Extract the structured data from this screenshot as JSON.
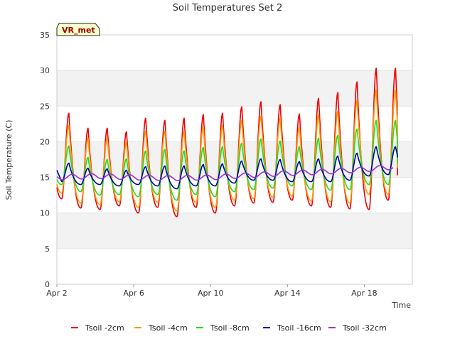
{
  "chart_data": {
    "type": "line",
    "title": "Soil Temperatures Set 2",
    "xlabel": "Time",
    "ylabel": "Soil Temperature (C)",
    "site_label": "VR_met",
    "xlim": [
      "2024-04-02T00:00",
      "2024-04-20T12:00"
    ],
    "ylim": [
      0,
      35
    ],
    "y_ticks": [
      0,
      5,
      10,
      15,
      20,
      25,
      30,
      35
    ],
    "x_ticks": [
      {
        "date": "2024-04-02",
        "label": "Apr 2"
      },
      {
        "date": "2024-04-06",
        "label": "Apr 6"
      },
      {
        "date": "2024-04-10",
        "label": "Apr 10"
      },
      {
        "date": "2024-04-14",
        "label": "Apr 14"
      },
      {
        "date": "2024-04-18",
        "label": "Apr 18"
      }
    ],
    "grid": "horizontal bands",
    "legend_position": "bottom",
    "series": [
      {
        "name": "Tsoil -2cm",
        "color": "#ee0000",
        "line_kind": "daily",
        "days": [
          "2024-04-02",
          "2024-04-03",
          "2024-04-04",
          "2024-04-05",
          "2024-04-06",
          "2024-04-07",
          "2024-04-08",
          "2024-04-09",
          "2024-04-10",
          "2024-04-11",
          "2024-04-12",
          "2024-04-13",
          "2024-04-14",
          "2024-04-15",
          "2024-04-16",
          "2024-04-17",
          "2024-04-18",
          "2024-04-19"
        ],
        "daily_min": [
          12.0,
          10.7,
          10.5,
          11.0,
          10.0,
          10.8,
          9.5,
          10.8,
          10.0,
          11.0,
          11.4,
          11.5,
          11.8,
          11.0,
          10.8,
          10.6,
          10.5,
          11.8
        ],
        "daily_max": [
          24.0,
          21.9,
          21.9,
          21.4,
          23.3,
          23.0,
          23.3,
          23.8,
          24.0,
          24.9,
          25.6,
          25.2,
          23.9,
          26.1,
          26.9,
          28.4,
          30.3,
          30.3
        ],
        "end_value": 15.3
      },
      {
        "name": "Tsoil -4cm",
        "color": "#ff9900",
        "line_kind": "daily",
        "days": [
          "2024-04-02",
          "2024-04-03",
          "2024-04-04",
          "2024-04-05",
          "2024-04-06",
          "2024-04-07",
          "2024-04-08",
          "2024-04-09",
          "2024-04-10",
          "2024-04-11",
          "2024-04-12",
          "2024-04-13",
          "2024-04-14",
          "2024-04-15",
          "2024-04-16",
          "2024-04-17",
          "2024-04-18",
          "2024-04-19"
        ],
        "daily_min": [
          12.8,
          11.4,
          11.2,
          11.6,
          10.8,
          11.5,
          10.3,
          11.5,
          10.8,
          11.8,
          12.0,
          12.2,
          12.4,
          11.7,
          11.6,
          11.4,
          12.6,
          12.6
        ],
        "daily_max": [
          22.3,
          20.5,
          20.5,
          20.0,
          21.5,
          21.5,
          21.5,
          22.1,
          22.3,
          23.0,
          23.6,
          23.3,
          22.0,
          23.8,
          24.3,
          25.8,
          27.3,
          27.3
        ],
        "end_value": 16.3
      },
      {
        "name": "Tsoil -8cm",
        "color": "#22dd22",
        "line_kind": "daily",
        "days": [
          "2024-04-02",
          "2024-04-03",
          "2024-04-04",
          "2024-04-05",
          "2024-04-06",
          "2024-04-07",
          "2024-04-08",
          "2024-04-09",
          "2024-04-10",
          "2024-04-11",
          "2024-04-12",
          "2024-04-13",
          "2024-04-14",
          "2024-04-15",
          "2024-04-16",
          "2024-04-17",
          "2024-04-18",
          "2024-04-19"
        ],
        "daily_min": [
          14.0,
          13.0,
          12.5,
          12.6,
          12.3,
          12.6,
          11.8,
          12.6,
          12.3,
          13.0,
          13.3,
          13.5,
          13.8,
          13.3,
          13.2,
          13.3,
          14.0,
          14.0
        ],
        "daily_max": [
          19.4,
          17.8,
          17.5,
          17.6,
          18.7,
          18.9,
          18.7,
          19.2,
          19.3,
          19.8,
          20.4,
          20.1,
          19.3,
          20.5,
          20.9,
          21.8,
          23.0,
          23.0
        ],
        "end_value": 17.0
      },
      {
        "name": "Tsoil -16cm",
        "color": "#0000aa",
        "line_kind": "daily",
        "days": [
          "2024-04-02",
          "2024-04-03",
          "2024-04-04",
          "2024-04-05",
          "2024-04-06",
          "2024-04-07",
          "2024-04-08",
          "2024-04-09",
          "2024-04-10",
          "2024-04-11",
          "2024-04-12",
          "2024-04-13",
          "2024-04-14",
          "2024-04-15",
          "2024-04-16",
          "2024-04-17",
          "2024-04-18",
          "2024-04-19"
        ],
        "daily_min": [
          14.4,
          14.0,
          14.0,
          13.8,
          14.0,
          13.8,
          13.4,
          13.8,
          13.8,
          14.2,
          14.6,
          14.6,
          14.4,
          14.4,
          14.4,
          14.6,
          15.2,
          15.4
        ],
        "daily_max": [
          17.0,
          16.3,
          16.2,
          16.0,
          16.5,
          16.6,
          16.6,
          16.8,
          16.9,
          17.3,
          17.6,
          17.5,
          17.2,
          17.6,
          18.0,
          18.4,
          19.3,
          19.3
        ],
        "start_value": 16.0,
        "end_value": 17.8
      },
      {
        "name": "Tsoil -32cm",
        "color": "#9933cc",
        "line_kind": "smooth",
        "x": [
          "2024-04-02T00:00",
          "2024-04-04T00:00",
          "2024-04-06T00:00",
          "2024-04-08T00:00",
          "2024-04-10T00:00",
          "2024-04-12T00:00",
          "2024-04-14T00:00",
          "2024-04-16T00:00",
          "2024-04-18T00:00",
          "2024-04-20T00:00"
        ],
        "y": [
          15.0,
          15.2,
          15.0,
          14.9,
          15.0,
          15.3,
          15.6,
          15.8,
          16.1,
          16.6
        ],
        "amplitude": 0.35
      }
    ]
  }
}
